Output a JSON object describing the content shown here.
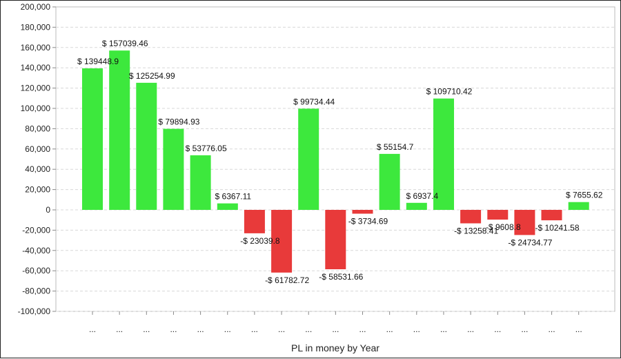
{
  "chart_data": {
    "type": "bar",
    "xlabel": "PL in money by Year",
    "ylabel": "",
    "ylim": [
      -100000,
      200000
    ],
    "y_ticks": [
      200000,
      180000,
      160000,
      140000,
      120000,
      100000,
      80000,
      60000,
      40000,
      20000,
      0,
      -20000,
      -40000,
      -60000,
      -80000,
      -100000
    ],
    "y_tick_labels": [
      "200,000",
      "180,000",
      "160,000",
      "140,000",
      "120,000",
      "100,000",
      "80,000",
      "60,000",
      "40,000",
      "20,000",
      "0",
      "-20,000",
      "-40,000",
      "-60,000",
      "-80,000",
      "-100,000"
    ],
    "grid": true,
    "legend": "none",
    "categories": [
      "...",
      "...",
      "...",
      "...",
      "...",
      "...",
      "...",
      "...",
      "...",
      "...",
      "...",
      "...",
      "...",
      "...",
      "...",
      "...",
      "...",
      "...",
      "..."
    ],
    "values": [
      139448.9,
      157039.46,
      125254.99,
      79894.93,
      53776.05,
      6367.11,
      -23039.8,
      -61782.72,
      99734.44,
      -58531.66,
      -3734.69,
      55154.7,
      6937.4,
      109710.42,
      -13258.41,
      -9608.8,
      -24734.77,
      -10241.58,
      7655.62
    ],
    "data_labels": [
      "$ 139448.9",
      "$ 157039.46",
      "$ 125254.99",
      "$ 79894.93",
      "$ 53776.05",
      "$ 6367.11",
      "-$ 23039.8",
      "-$ 61782.72",
      "$ 99734.44",
      "-$ 58531.66",
      "-$ 3734.69",
      "$ 55154.7",
      "$ 6937.4",
      "$ 109710.42",
      "-$ 13258.41",
      "-$ 9608.8",
      "-$ 24734.77",
      "-$ 10241.58",
      "$ 7655.62"
    ],
    "colors": {
      "positive": "#3de83d",
      "negative": "#e83a3a",
      "grid": "#d8d8d8",
      "axis": "#888888"
    }
  }
}
